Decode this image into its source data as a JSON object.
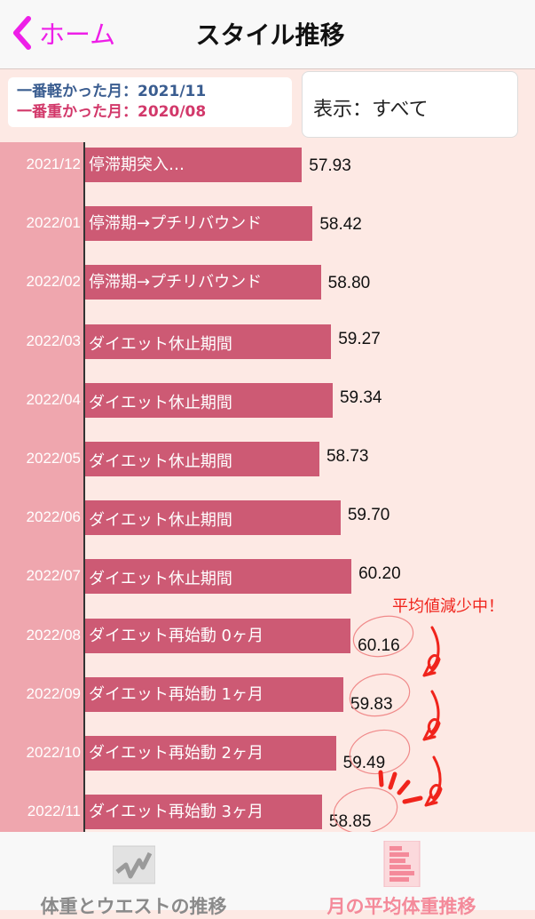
{
  "nav": {
    "back_label": "ホーム",
    "title": "スタイル推移",
    "back_icon": "chevron-left-icon",
    "accent": "#ee1fe8"
  },
  "summary": {
    "lightest": "一番軽かった月：2021/11",
    "heaviest": "一番重かった月：2020/08"
  },
  "filter": {
    "label": "表示：すべて"
  },
  "chart_data": {
    "type": "bar",
    "orientation": "horizontal",
    "bar_color": "#cd5a74",
    "categories": [
      "2021/12",
      "2022/01",
      "2022/02",
      "2022/03",
      "2022/04",
      "2022/05",
      "2022/06",
      "2022/07",
      "2022/08",
      "2022/09",
      "2022/10",
      "2022/11"
    ],
    "labels": [
      "停滞期突入…",
      "停滞期→プチリバウンド",
      "停滞期→プチリバウンド",
      "ダイエット休止期間",
      "ダイエット休止期間",
      "ダイエット休止期間",
      "ダイエット休止期間",
      "ダイエット休止期間",
      "ダイエット再始動 0ヶ月",
      "ダイエット再始動 1ヶ月",
      "ダイエット再始動 2ヶ月",
      "ダイエット再始動 3ヶ月"
    ],
    "values": [
      57.93,
      58.42,
      58.8,
      59.27,
      59.34,
      58.73,
      59.7,
      60.2,
      60.16,
      59.83,
      59.49,
      58.85
    ],
    "value_labels": [
      "57.93",
      "58.42",
      "58.80",
      "59.27",
      "59.34",
      "58.73",
      "59.70",
      "60.20",
      "60.16",
      "59.83",
      "59.49",
      "58.85"
    ],
    "annotation": "平均値減少中！"
  },
  "tabs": [
    {
      "label": "体重とウエストの推移",
      "icon": "line-chart-icon",
      "active": false,
      "color": "#8a8a8a"
    },
    {
      "label": "月の平均体重推移",
      "icon": "bar-chart-icon",
      "active": true,
      "color": "#f48a9a"
    }
  ]
}
